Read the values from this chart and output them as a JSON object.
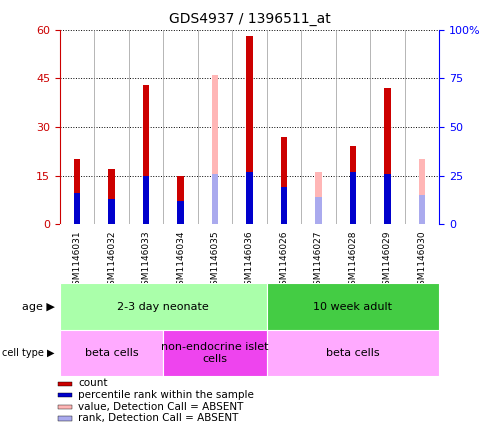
{
  "title": "GDS4937 / 1396511_at",
  "samples": [
    "GSM1146031",
    "GSM1146032",
    "GSM1146033",
    "GSM1146034",
    "GSM1146035",
    "GSM1146036",
    "GSM1146026",
    "GSM1146027",
    "GSM1146028",
    "GSM1146029",
    "GSM1146030"
  ],
  "count_values": [
    20,
    17,
    43,
    15,
    null,
    58,
    27,
    null,
    24,
    42,
    null
  ],
  "rank_values": [
    16,
    13,
    25,
    12,
    null,
    27,
    19,
    null,
    27,
    26,
    null
  ],
  "absent_count": [
    null,
    null,
    null,
    null,
    46,
    null,
    null,
    16,
    null,
    null,
    20
  ],
  "absent_rank": [
    null,
    null,
    null,
    null,
    26,
    null,
    null,
    14,
    null,
    null,
    15
  ],
  "ylim_left": [
    0,
    60
  ],
  "ylim_right": [
    0,
    100
  ],
  "yticks_left": [
    0,
    15,
    30,
    45,
    60
  ],
  "yticks_right": [
    0,
    25,
    50,
    75,
    100
  ],
  "ytick_labels_left": [
    "0",
    "15",
    "30",
    "45",
    "60"
  ],
  "ytick_labels_right": [
    "0",
    "25",
    "50",
    "75",
    "100%"
  ],
  "color_red": "#cc0000",
  "color_pink": "#ffb6b6",
  "color_blue": "#0000cc",
  "color_lightblue": "#aaaaee",
  "bar_width": 0.18,
  "blue_bar_width": 0.18,
  "age_groups": [
    {
      "label": "2-3 day neonate",
      "start": 0,
      "end": 6,
      "color": "#aaffaa"
    },
    {
      "label": "10 week adult",
      "start": 6,
      "end": 11,
      "color": "#44cc44"
    }
  ],
  "cell_type_groups": [
    {
      "label": "beta cells",
      "start": 0,
      "end": 3,
      "color": "#ffaaff"
    },
    {
      "label": "non-endocrine islet\ncells",
      "start": 3,
      "end": 6,
      "color": "#ee44ee"
    },
    {
      "label": "beta cells",
      "start": 6,
      "end": 11,
      "color": "#ffaaff"
    }
  ],
  "legend_items": [
    {
      "color": "#cc0000",
      "label": "count"
    },
    {
      "color": "#0000cc",
      "label": "percentile rank within the sample"
    },
    {
      "color": "#ffb6b6",
      "label": "value, Detection Call = ABSENT"
    },
    {
      "color": "#aaaaee",
      "label": "rank, Detection Call = ABSENT"
    }
  ],
  "xtick_bg": "#cccccc",
  "plot_bg": "#ffffff"
}
